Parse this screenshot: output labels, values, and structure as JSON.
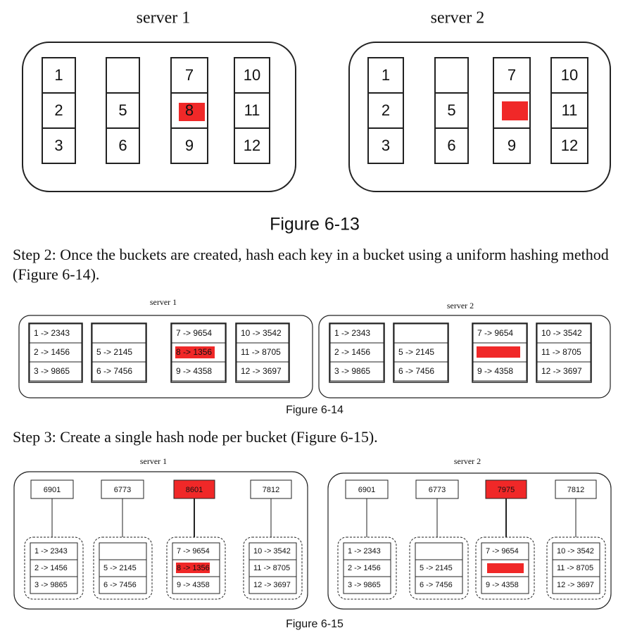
{
  "fig13": {
    "caption": "Figure 6-13",
    "servers": [
      {
        "label": "server 1",
        "buckets": [
          [
            "1",
            "2",
            "3"
          ],
          [
            "",
            "5",
            "6"
          ],
          [
            "7",
            "8",
            "9"
          ],
          [
            "10",
            "11",
            "12"
          ]
        ],
        "hl": "8"
      },
      {
        "label": "server 2",
        "buckets": [
          [
            "1",
            "2",
            "3"
          ],
          [
            "",
            "5",
            "6"
          ],
          [
            "7",
            "",
            "9"
          ],
          [
            "10",
            "11",
            "12"
          ]
        ],
        "hl": "bar"
      }
    ]
  },
  "step2": "Step 2: Once the buckets are created, hash each key in a bucket using a uniform hashing method (Figure 6-14).",
  "fig14": {
    "caption": "Figure 6-14",
    "servers": [
      {
        "label": "server 1",
        "buckets": [
          [
            "1 -> 2343",
            "2 -> 1456",
            "3 -> 9865"
          ],
          [
            "",
            "5 -> 2145",
            "6 -> 7456"
          ],
          [
            "7 -> 9654",
            "8 -> 1356",
            "9 -> 4358"
          ],
          [
            "10 -> 3542",
            "11 -> 8705",
            "12 -> 3697"
          ]
        ],
        "hl": "8 -> 1356"
      },
      {
        "label": "server 2",
        "buckets": [
          [
            "1 -> 2343",
            "2 -> 1456",
            "3 -> 9865"
          ],
          [
            "",
            "5 -> 2145",
            "6 -> 7456"
          ],
          [
            "7 -> 9654",
            "",
            "9 -> 4358"
          ],
          [
            "10 -> 3542",
            "11 -> 8705",
            "12 -> 3697"
          ]
        ],
        "hl": "bar"
      }
    ]
  },
  "step3": "Step 3: Create a single hash node per bucket (Figure 6-15).",
  "fig15": {
    "caption": "Figure 6-15",
    "servers": [
      {
        "label": "server 1",
        "nodes": [
          "6901",
          "6773",
          "8601",
          "7812"
        ],
        "hl_node": 2,
        "buckets": [
          [
            "1 -> 2343",
            "2 -> 1456",
            "3 -> 9865"
          ],
          [
            "",
            "5 -> 2145",
            "6 -> 7456"
          ],
          [
            "7 -> 9654",
            "8 -> 1356",
            "9 -> 4358"
          ],
          [
            "10 -> 3542",
            "11 -> 8705",
            "12 -> 3697"
          ]
        ],
        "hl": "8 -> 1356"
      },
      {
        "label": "server 2",
        "nodes": [
          "6901",
          "6773",
          "7975",
          "7812"
        ],
        "hl_node": 2,
        "buckets": [
          [
            "1 -> 2343",
            "2 -> 1456",
            "3 -> 9865"
          ],
          [
            "",
            "5 -> 2145",
            "6 -> 7456"
          ],
          [
            "7 -> 9654",
            "",
            "9 -> 4358"
          ],
          [
            "10 -> 3542",
            "11 -> 8705",
            "12 -> 3697"
          ]
        ],
        "hl": "bar"
      }
    ]
  },
  "colors": {
    "highlight": "#f02828",
    "stroke": "#222222"
  }
}
